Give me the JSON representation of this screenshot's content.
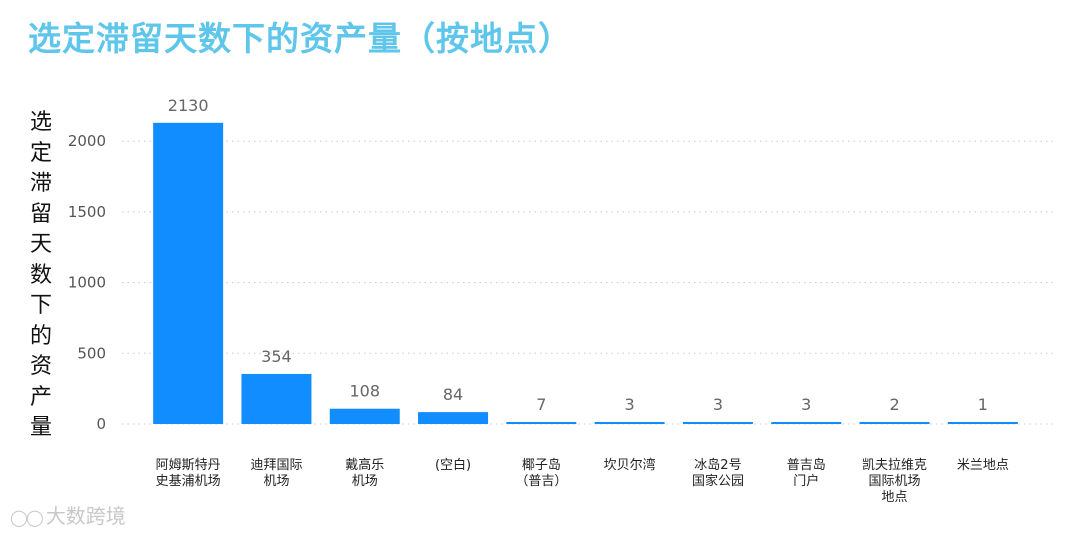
{
  "title": "选定滞留天数下的资产量（按地点）",
  "watermark": {
    "icon": "chat-bubbles-icon",
    "text": "大数跨境"
  },
  "chart_data": {
    "type": "bar",
    "ylabel": "选定滞留天数下的资产量",
    "xlabel": "",
    "categories": [
      [
        "阿姆斯特丹",
        "史基浦机场"
      ],
      [
        "迪拜国际",
        "机场"
      ],
      [
        "戴高乐",
        "机场"
      ],
      [
        "(空白)"
      ],
      [
        "椰子岛",
        "（普吉）"
      ],
      [
        "坎贝尔湾"
      ],
      [
        "冰岛2号",
        "国家公园"
      ],
      [
        "普吉岛",
        "门户"
      ],
      [
        "凯夫拉维克",
        "国际机场",
        "地点"
      ],
      [
        "米兰地点"
      ]
    ],
    "values": [
      2130,
      354,
      108,
      84,
      7,
      3,
      3,
      3,
      2,
      1
    ],
    "yticks": [
      0,
      500,
      1000,
      1500,
      2000
    ],
    "ylim": [
      0,
      2350
    ],
    "grid": true,
    "colors": {
      "bar": "#118dff",
      "title": "#5ec6ea"
    }
  }
}
